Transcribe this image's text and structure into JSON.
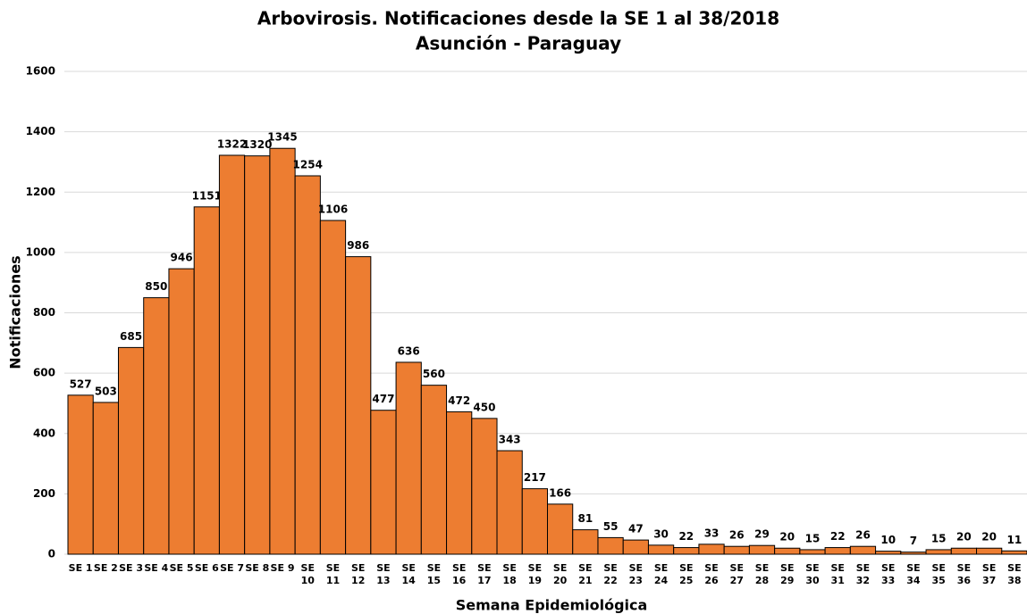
{
  "chart_data": {
    "type": "bar",
    "title": "Arbovirosis. Notificaciones desde la SE 1 al 38/2018",
    "subtitle": "Asunción - Paraguay",
    "x_label": "Semana Epidemiológica",
    "y_label": "Notificaciones",
    "categories": [
      "SE 1",
      "SE 2",
      "SE 3",
      "SE 4",
      "SE 5",
      "SE 6",
      "SE 7",
      "SE 8",
      "SE 9",
      "SE 10",
      "SE 11",
      "SE 12",
      "SE 13",
      "SE 14",
      "SE 15",
      "SE 16",
      "SE 17",
      "SE 18",
      "SE 19",
      "SE 20",
      "SE 21",
      "SE 22",
      "SE 23",
      "SE 24",
      "SE 25",
      "SE 26",
      "SE 27",
      "SE 28",
      "SE 29",
      "SE 30",
      "SE 31",
      "SE 32",
      "SE 33",
      "SE 34",
      "SE 35",
      "SE 36",
      "SE 37",
      "SE 38"
    ],
    "values": [
      527,
      503,
      685,
      850,
      946,
      1151,
      1322,
      1320,
      1345,
      1254,
      1106,
      986,
      477,
      636,
      560,
      472,
      450,
      343,
      217,
      166,
      81,
      55,
      47,
      30,
      22,
      33,
      26,
      29,
      20,
      15,
      22,
      26,
      10,
      7,
      15,
      20,
      20,
      11
    ],
    "color": "#ed7d31",
    "ylim": [
      0,
      1600
    ],
    "yticks": [
      0,
      200,
      400,
      600,
      800,
      1000,
      1200,
      1400,
      1600
    ],
    "grid": true
  }
}
